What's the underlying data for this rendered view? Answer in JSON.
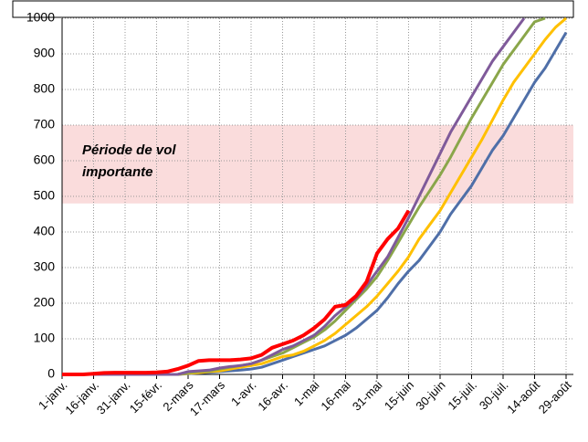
{
  "chart_data": {
    "type": "line",
    "categories": [
      "1-janv.",
      null,
      null,
      "16-janv.",
      null,
      null,
      "31-janv.",
      null,
      null,
      "15-févr.",
      null,
      null,
      "2-mars",
      null,
      null,
      "17-mars",
      null,
      null,
      "1-avr.",
      null,
      null,
      "16-avr.",
      null,
      null,
      "1-mai",
      null,
      null,
      "16-mai",
      null,
      null,
      "31-mai",
      null,
      null,
      "15-juin",
      null,
      null,
      "30-juin",
      null,
      null,
      "15-juil.",
      null,
      null,
      "30-juil.",
      null,
      null,
      "14-août",
      null,
      null,
      "29-août"
    ],
    "series": [
      {
        "color": "#4f6fa8",
        "values": [
          0,
          0,
          0,
          0,
          0,
          0,
          0,
          0,
          0,
          0,
          0,
          0,
          2,
          4,
          6,
          8,
          10,
          12,
          15,
          20,
          30,
          40,
          50,
          60,
          70,
          80,
          95,
          110,
          130,
          155,
          180,
          215,
          255,
          290,
          320,
          360,
          400,
          450,
          490,
          530,
          580,
          630,
          670,
          720,
          770,
          820,
          860,
          910,
          960
        ]
      },
      {
        "color": "#ffc000",
        "values": [
          0,
          0,
          0,
          0,
          0,
          0,
          0,
          0,
          0,
          0,
          0,
          0,
          3,
          5,
          8,
          10,
          15,
          20,
          25,
          30,
          40,
          50,
          55,
          65,
          80,
          95,
          115,
          140,
          165,
          190,
          220,
          255,
          290,
          330,
          380,
          420,
          460,
          510,
          560,
          610,
          660,
          715,
          770,
          820,
          860,
          900,
          940,
          975,
          1000
        ]
      },
      {
        "color": "#8aa64a",
        "values": [
          0,
          0,
          0,
          0,
          0,
          0,
          0,
          0,
          0,
          0,
          0,
          0,
          5,
          8,
          10,
          15,
          20,
          25,
          30,
          40,
          50,
          60,
          75,
          90,
          105,
          125,
          150,
          180,
          210,
          240,
          275,
          320,
          370,
          420,
          470,
          515,
          560,
          610,
          665,
          720,
          770,
          820,
          870,
          910,
          950,
          990,
          1000,
          null,
          null
        ]
      },
      {
        "color": "#7f5a9a",
        "values": [
          0,
          0,
          0,
          0,
          0,
          0,
          0,
          0,
          0,
          0,
          0,
          0,
          8,
          10,
          12,
          18,
          22,
          25,
          30,
          40,
          55,
          70,
          80,
          95,
          110,
          135,
          165,
          190,
          215,
          250,
          290,
          330,
          385,
          440,
          500,
          560,
          620,
          680,
          730,
          780,
          830,
          880,
          920,
          960,
          1000,
          null,
          null,
          null,
          null
        ]
      },
      {
        "color": "#ff0000",
        "values": [
          0,
          0,
          0,
          2,
          4,
          5,
          5,
          5,
          5,
          6,
          8,
          15,
          25,
          38,
          40,
          40,
          40,
          42,
          45,
          55,
          75,
          85,
          95,
          110,
          130,
          155,
          190,
          195,
          220,
          260,
          340,
          380,
          410,
          460,
          null,
          null,
          null,
          null,
          null,
          null,
          null,
          null,
          null,
          null,
          null,
          null,
          null,
          null,
          null
        ]
      }
    ],
    "ylim": [
      0,
      1000
    ],
    "yticks": [
      0,
      100,
      200,
      300,
      400,
      500,
      600,
      700,
      800,
      900,
      1000
    ],
    "grid": true,
    "highlight": {
      "range": [
        480,
        700
      ],
      "color": "#fadcdc"
    },
    "annotation": [
      "Période de vol",
      "importante"
    ]
  }
}
